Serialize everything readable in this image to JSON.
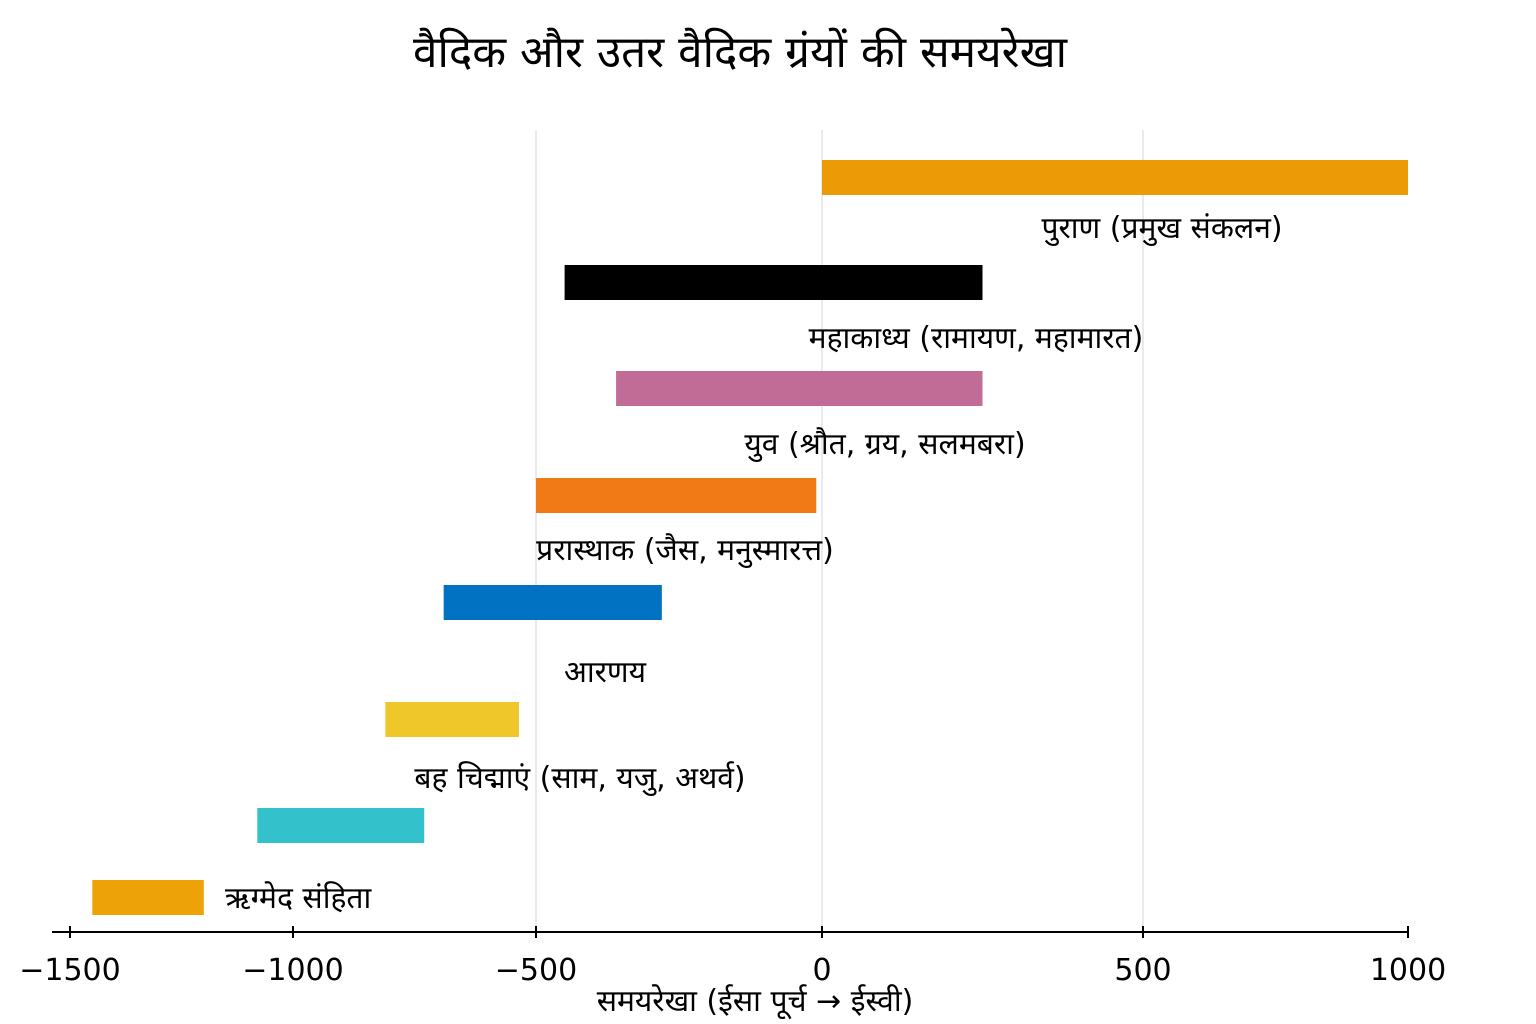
{
  "chart_data": {
    "type": "bar",
    "orientation": "horizontal-range",
    "title": "वैदिक और उतर वैदिक ग्रंयों की समयरेखा",
    "xlabel": "समयरेखा (ईसा पूर्च → ईस्वी)",
    "xlim": [
      -1500,
      1000
    ],
    "x_ticks": [
      -1500,
      -1000,
      -500,
      0,
      500,
      1000
    ],
    "x_tick_labels": [
      "−1500",
      "−1000",
      "−500",
      "0",
      "500",
      "1000"
    ],
    "vertical_gridlines_at": [
      -500,
      0,
      500
    ],
    "series": [
      {
        "label": "पुराण (प्रमुख संकलन)",
        "start": 0,
        "end": 1000,
        "color": "#ED9A07"
      },
      {
        "label": "महाकाध्य (रामायण, महामारत)",
        "start": -450,
        "end": 250,
        "color": "#000000"
      },
      {
        "label": "युव (श्रौत, ग्रय, सलमबरा)",
        "start": -360,
        "end": 250,
        "color": "#C06C97"
      },
      {
        "label": "प्ररास्थाक (जैस, मनुस्मारत्त)",
        "start": -500,
        "end": -10,
        "color": "#F27A16"
      },
      {
        "label": "आरणय",
        "start": -690,
        "end": -280,
        "color": "#0072C1"
      },
      {
        "label": "बह चिद्माएं (साम, यजु, अथर्व)",
        "start": -810,
        "end": -535,
        "color": "#F0C72B"
      },
      {
        "label": "",
        "start": -1080,
        "end": -730,
        "color": "#33C1CC"
      },
      {
        "label": "ऋग्मेद संहिता",
        "start": -1450,
        "end": -1200,
        "color": "#EDA308"
      }
    ]
  }
}
